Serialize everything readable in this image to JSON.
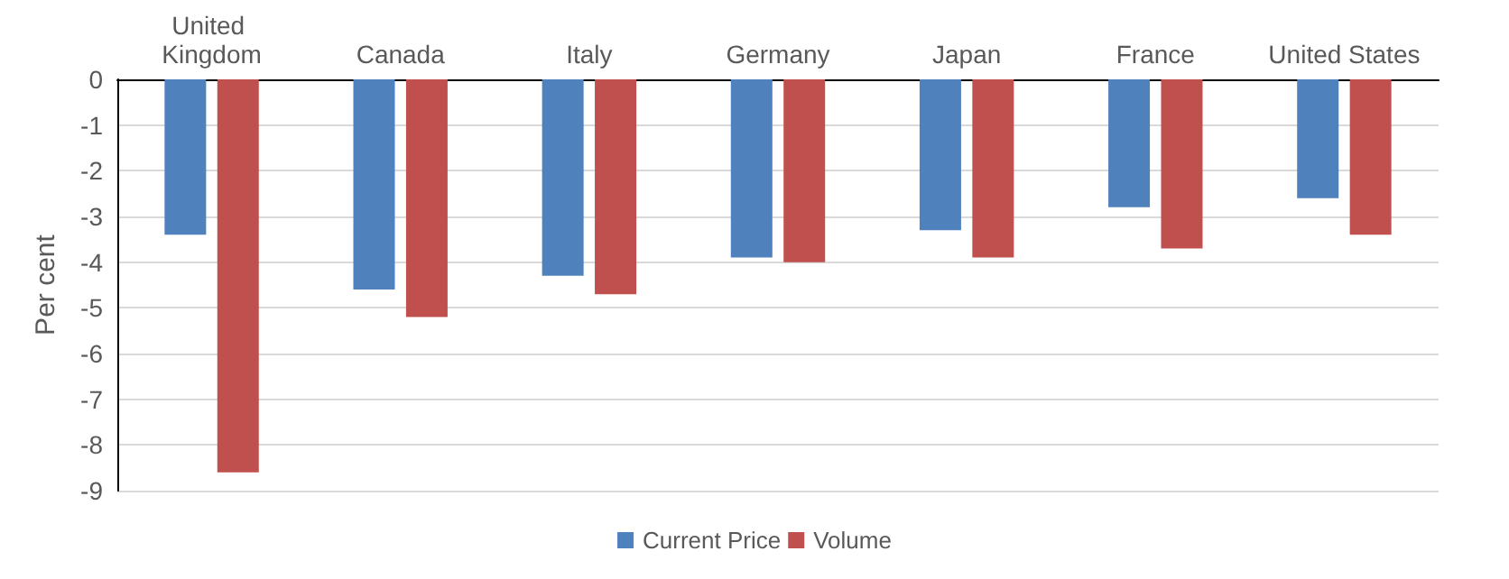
{
  "chart_data": {
    "type": "bar",
    "ylabel": "Per cent",
    "categories": [
      "United Kingdom",
      "Canada",
      "Italy",
      "Germany",
      "Japan",
      "France",
      "United States"
    ],
    "series": [
      {
        "name": "Current Price",
        "color": "#4f81bd",
        "values": [
          -3.4,
          -4.6,
          -4.3,
          -3.9,
          -3.3,
          -2.8,
          -2.6
        ]
      },
      {
        "name": "Volume",
        "color": "#c0504d",
        "values": [
          -8.6,
          -5.2,
          -4.7,
          -4.0,
          -3.9,
          -3.7,
          -3.4
        ]
      }
    ],
    "ylim": [
      -9,
      0
    ],
    "yticks": [
      -9,
      -8,
      -7,
      -6,
      -5,
      -4,
      -3,
      -2,
      -1,
      0
    ],
    "grid": "y",
    "legend": "bottom"
  }
}
